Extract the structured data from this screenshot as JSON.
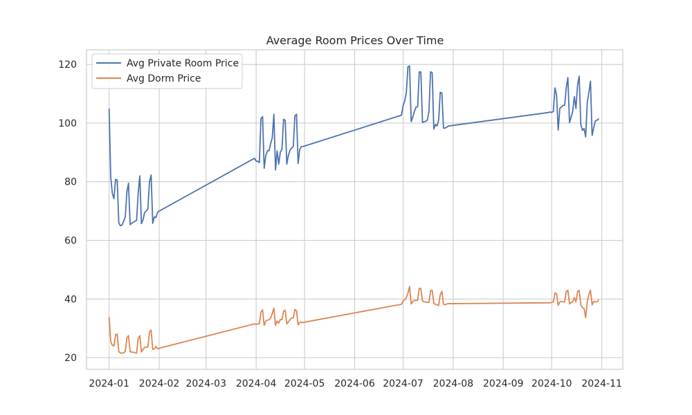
{
  "chart_data": {
    "type": "line",
    "title": "Average Room Prices Over Time",
    "xlabel": "",
    "ylabel": "",
    "x_axis_type": "date",
    "xlim": [
      "2023-12-18",
      "2024-11-14"
    ],
    "ylim": [
      16,
      125
    ],
    "grid": true,
    "legend_position": "top-left",
    "x_ticks": [
      "2024-01-01",
      "2024-02-01",
      "2024-03-01",
      "2024-04-01",
      "2024-05-01",
      "2024-06-01",
      "2024-07-01",
      "2024-08-01",
      "2024-09-01",
      "2024-10-01",
      "2024-11-01"
    ],
    "x_tick_labels": [
      "2024-01",
      "2024-02",
      "2024-03",
      "2024-04",
      "2024-05",
      "2024-06",
      "2024-07",
      "2024-08",
      "2024-09",
      "2024-10",
      "2024-11"
    ],
    "y_ticks": [
      20,
      40,
      60,
      80,
      100,
      120
    ],
    "y_tick_labels": [
      "20",
      "40",
      "60",
      "80",
      "100",
      "120"
    ],
    "series": [
      {
        "name": "Avg Private Room Price",
        "color": "#4c72b0",
        "points": [
          [
            "2024-01-01",
            104.8
          ],
          [
            "2024-01-02",
            81.5
          ],
          [
            "2024-01-03",
            76.0
          ],
          [
            "2024-01-04",
            74.2
          ],
          [
            "2024-01-05",
            80.8
          ],
          [
            "2024-01-06",
            80.6
          ],
          [
            "2024-01-07",
            66.0
          ],
          [
            "2024-01-08",
            65.0
          ],
          [
            "2024-01-09",
            65.2
          ],
          [
            "2024-01-10",
            66.5
          ],
          [
            "2024-01-11",
            68.0
          ],
          [
            "2024-01-12",
            76.5
          ],
          [
            "2024-01-13",
            79.5
          ],
          [
            "2024-01-14",
            65.4
          ],
          [
            "2024-01-15",
            65.8
          ],
          [
            "2024-01-16",
            66.2
          ],
          [
            "2024-01-17",
            66.5
          ],
          [
            "2024-01-18",
            66.8
          ],
          [
            "2024-01-19",
            76.0
          ],
          [
            "2024-01-20",
            82.0
          ],
          [
            "2024-01-21",
            65.7
          ],
          [
            "2024-01-22",
            67.0
          ],
          [
            "2024-01-23",
            69.5
          ],
          [
            "2024-01-24",
            70.0
          ],
          [
            "2024-01-25",
            70.8
          ],
          [
            "2024-01-26",
            80.0
          ],
          [
            "2024-01-27",
            82.3
          ],
          [
            "2024-01-28",
            65.8
          ],
          [
            "2024-01-29",
            68.0
          ],
          [
            "2024-01-30",
            67.8
          ],
          [
            "2024-01-31",
            69.6
          ],
          [
            "2024-02-01",
            70.0
          ],
          [
            "2024-03-31",
            88.0
          ],
          [
            "2024-04-01",
            87.0
          ],
          [
            "2024-04-02",
            87.0
          ],
          [
            "2024-04-03",
            86.5
          ],
          [
            "2024-04-04",
            101.5
          ],
          [
            "2024-04-05",
            102.2
          ],
          [
            "2024-04-06",
            84.6
          ],
          [
            "2024-04-07",
            89.0
          ],
          [
            "2024-04-08",
            90.5
          ],
          [
            "2024-04-09",
            90.6
          ],
          [
            "2024-04-10",
            93.0
          ],
          [
            "2024-04-11",
            95.0
          ],
          [
            "2024-04-12",
            103.0
          ],
          [
            "2024-04-13",
            84.0
          ],
          [
            "2024-04-14",
            90.5
          ],
          [
            "2024-04-15",
            86.0
          ],
          [
            "2024-04-16",
            90.2
          ],
          [
            "2024-04-17",
            91.0
          ],
          [
            "2024-04-18",
            101.3
          ],
          [
            "2024-04-19",
            100.9
          ],
          [
            "2024-04-20",
            86.0
          ],
          [
            "2024-04-21",
            89.0
          ],
          [
            "2024-04-22",
            90.8
          ],
          [
            "2024-04-23",
            91.5
          ],
          [
            "2024-04-24",
            92.0
          ],
          [
            "2024-04-25",
            102.4
          ],
          [
            "2024-04-26",
            103.0
          ],
          [
            "2024-04-27",
            86.2
          ],
          [
            "2024-04-28",
            91.0
          ],
          [
            "2024-04-29",
            92.0
          ],
          [
            "2024-04-30",
            92.0
          ],
          [
            "2024-06-30",
            102.7
          ],
          [
            "2024-07-01",
            106.0
          ],
          [
            "2024-07-02",
            107.5
          ],
          [
            "2024-07-03",
            110.5
          ],
          [
            "2024-07-04",
            119.2
          ],
          [
            "2024-07-05",
            119.5
          ],
          [
            "2024-07-06",
            100.5
          ],
          [
            "2024-07-07",
            102.0
          ],
          [
            "2024-07-08",
            104.0
          ],
          [
            "2024-07-09",
            105.5
          ],
          [
            "2024-07-10",
            105.5
          ],
          [
            "2024-07-11",
            117.5
          ],
          [
            "2024-07-12",
            117.4
          ],
          [
            "2024-07-13",
            100.2
          ],
          [
            "2024-07-14",
            100.5
          ],
          [
            "2024-07-15",
            100.6
          ],
          [
            "2024-07-16",
            101.0
          ],
          [
            "2024-07-17",
            104.0
          ],
          [
            "2024-07-18",
            117.5
          ],
          [
            "2024-07-19",
            117.2
          ],
          [
            "2024-07-20",
            98.0
          ],
          [
            "2024-07-21",
            99.5
          ],
          [
            "2024-07-22",
            99.0
          ],
          [
            "2024-07-23",
            101.0
          ],
          [
            "2024-07-24",
            110.5
          ],
          [
            "2024-07-25",
            110.3
          ],
          [
            "2024-07-26",
            98.3
          ],
          [
            "2024-07-27",
            98.3
          ],
          [
            "2024-07-28",
            98.6
          ],
          [
            "2024-07-29",
            99.0
          ],
          [
            "2024-09-29",
            103.6
          ],
          [
            "2024-09-30",
            103.8
          ],
          [
            "2024-10-01",
            103.6
          ],
          [
            "2024-10-02",
            104.0
          ],
          [
            "2024-10-03",
            112.0
          ],
          [
            "2024-10-04",
            109.5
          ],
          [
            "2024-10-05",
            97.6
          ],
          [
            "2024-10-06",
            105.0
          ],
          [
            "2024-10-07",
            105.5
          ],
          [
            "2024-10-08",
            106.0
          ],
          [
            "2024-10-09",
            106.0
          ],
          [
            "2024-10-10",
            112.0
          ],
          [
            "2024-10-11",
            115.5
          ],
          [
            "2024-10-12",
            100.2
          ],
          [
            "2024-10-13",
            102.0
          ],
          [
            "2024-10-14",
            104.0
          ],
          [
            "2024-10-15",
            109.0
          ],
          [
            "2024-10-16",
            105.0
          ],
          [
            "2024-10-17",
            113.0
          ],
          [
            "2024-10-18",
            116.0
          ],
          [
            "2024-10-19",
            99.5
          ],
          [
            "2024-10-20",
            97.5
          ],
          [
            "2024-10-21",
            98.2
          ],
          [
            "2024-10-22",
            95.3
          ],
          [
            "2024-10-23",
            107.0
          ],
          [
            "2024-10-24",
            110.5
          ],
          [
            "2024-10-25",
            114.3
          ],
          [
            "2024-10-26",
            95.8
          ],
          [
            "2024-10-27",
            98.5
          ],
          [
            "2024-10-28",
            100.7
          ],
          [
            "2024-10-29",
            101.0
          ],
          [
            "2024-10-30",
            101.4
          ]
        ]
      },
      {
        "name": "Avg Dorm Price",
        "color": "#dd8452",
        "points": [
          [
            "2024-01-01",
            33.7
          ],
          [
            "2024-01-02",
            25.5
          ],
          [
            "2024-01-03",
            24.2
          ],
          [
            "2024-01-04",
            24.0
          ],
          [
            "2024-01-05",
            27.8
          ],
          [
            "2024-01-06",
            28.0
          ],
          [
            "2024-01-07",
            22.0
          ],
          [
            "2024-01-08",
            21.6
          ],
          [
            "2024-01-09",
            21.5
          ],
          [
            "2024-01-10",
            21.7
          ],
          [
            "2024-01-11",
            22.0
          ],
          [
            "2024-01-12",
            26.8
          ],
          [
            "2024-01-13",
            27.5
          ],
          [
            "2024-01-14",
            22.0
          ],
          [
            "2024-01-15",
            21.9
          ],
          [
            "2024-01-16",
            21.8
          ],
          [
            "2024-01-17",
            21.7
          ],
          [
            "2024-01-18",
            21.5
          ],
          [
            "2024-01-19",
            26.5
          ],
          [
            "2024-01-20",
            27.5
          ],
          [
            "2024-01-21",
            21.9
          ],
          [
            "2024-01-22",
            22.8
          ],
          [
            "2024-01-23",
            23.5
          ],
          [
            "2024-01-24",
            23.6
          ],
          [
            "2024-01-25",
            23.6
          ],
          [
            "2024-01-26",
            28.8
          ],
          [
            "2024-01-27",
            29.4
          ],
          [
            "2024-01-28",
            22.8
          ],
          [
            "2024-01-29",
            23.0
          ],
          [
            "2024-01-30",
            23.8
          ],
          [
            "2024-01-31",
            23.0
          ],
          [
            "2024-02-01",
            23.2
          ],
          [
            "2024-03-31",
            31.5
          ],
          [
            "2024-04-01",
            31.3
          ],
          [
            "2024-04-02",
            31.5
          ],
          [
            "2024-04-03",
            31.5
          ],
          [
            "2024-04-04",
            35.5
          ],
          [
            "2024-04-05",
            36.3
          ],
          [
            "2024-04-06",
            31.0
          ],
          [
            "2024-04-07",
            32.5
          ],
          [
            "2024-04-08",
            32.8
          ],
          [
            "2024-04-09",
            32.9
          ],
          [
            "2024-04-10",
            33.5
          ],
          [
            "2024-04-11",
            35.0
          ],
          [
            "2024-04-12",
            36.9
          ],
          [
            "2024-04-13",
            31.0
          ],
          [
            "2024-04-14",
            32.5
          ],
          [
            "2024-04-15",
            31.8
          ],
          [
            "2024-04-16",
            33.0
          ],
          [
            "2024-04-17",
            33.0
          ],
          [
            "2024-04-18",
            35.8
          ],
          [
            "2024-04-19",
            36.2
          ],
          [
            "2024-04-20",
            31.5
          ],
          [
            "2024-04-21",
            32.2
          ],
          [
            "2024-04-22",
            33.0
          ],
          [
            "2024-04-23",
            33.5
          ],
          [
            "2024-04-24",
            33.6
          ],
          [
            "2024-04-25",
            36.4
          ],
          [
            "2024-04-26",
            36.0
          ],
          [
            "2024-04-27",
            31.2
          ],
          [
            "2024-04-28",
            32.0
          ],
          [
            "2024-04-29",
            32.0
          ],
          [
            "2024-04-30",
            32.0
          ],
          [
            "2024-06-30",
            38.2
          ],
          [
            "2024-07-01",
            39.3
          ],
          [
            "2024-07-02",
            39.7
          ],
          [
            "2024-07-03",
            40.5
          ],
          [
            "2024-07-04",
            42.0
          ],
          [
            "2024-07-05",
            44.3
          ],
          [
            "2024-07-06",
            38.3
          ],
          [
            "2024-07-07",
            39.2
          ],
          [
            "2024-07-08",
            39.5
          ],
          [
            "2024-07-09",
            39.5
          ],
          [
            "2024-07-10",
            39.5
          ],
          [
            "2024-07-11",
            43.7
          ],
          [
            "2024-07-12",
            43.5
          ],
          [
            "2024-07-13",
            39.3
          ],
          [
            "2024-07-14",
            39.0
          ],
          [
            "2024-07-15",
            39.0
          ],
          [
            "2024-07-16",
            38.8
          ],
          [
            "2024-07-17",
            38.9
          ],
          [
            "2024-07-18",
            42.8
          ],
          [
            "2024-07-19",
            43.0
          ],
          [
            "2024-07-20",
            38.5
          ],
          [
            "2024-07-21",
            38.2
          ],
          [
            "2024-07-22",
            38.0
          ],
          [
            "2024-07-23",
            37.8
          ],
          [
            "2024-07-24",
            41.5
          ],
          [
            "2024-07-25",
            42.6
          ],
          [
            "2024-07-26",
            38.2
          ],
          [
            "2024-07-27",
            38.0
          ],
          [
            "2024-07-28",
            38.3
          ],
          [
            "2024-07-29",
            38.4
          ],
          [
            "2024-09-29",
            38.7
          ],
          [
            "2024-09-30",
            38.7
          ],
          [
            "2024-10-01",
            38.9
          ],
          [
            "2024-10-02",
            39.0
          ],
          [
            "2024-10-03",
            42.0
          ],
          [
            "2024-10-04",
            41.8
          ],
          [
            "2024-10-05",
            37.8
          ],
          [
            "2024-10-06",
            39.0
          ],
          [
            "2024-10-07",
            39.2
          ],
          [
            "2024-10-08",
            39.0
          ],
          [
            "2024-10-09",
            39.0
          ],
          [
            "2024-10-10",
            42.5
          ],
          [
            "2024-10-11",
            43.0
          ],
          [
            "2024-10-12",
            38.3
          ],
          [
            "2024-10-13",
            38.8
          ],
          [
            "2024-10-14",
            39.0
          ],
          [
            "2024-10-15",
            40.5
          ],
          [
            "2024-10-16",
            39.0
          ],
          [
            "2024-10-17",
            42.5
          ],
          [
            "2024-10-18",
            43.0
          ],
          [
            "2024-10-19",
            38.0
          ],
          [
            "2024-10-20",
            37.0
          ],
          [
            "2024-10-21",
            36.8
          ],
          [
            "2024-10-22",
            33.6
          ],
          [
            "2024-10-23",
            39.0
          ],
          [
            "2024-10-24",
            41.5
          ],
          [
            "2024-10-25",
            43.0
          ],
          [
            "2024-10-26",
            38.0
          ],
          [
            "2024-10-27",
            39.2
          ],
          [
            "2024-10-28",
            39.0
          ],
          [
            "2024-10-29",
            39.0
          ],
          [
            "2024-10-30",
            39.6
          ]
        ]
      }
    ]
  }
}
